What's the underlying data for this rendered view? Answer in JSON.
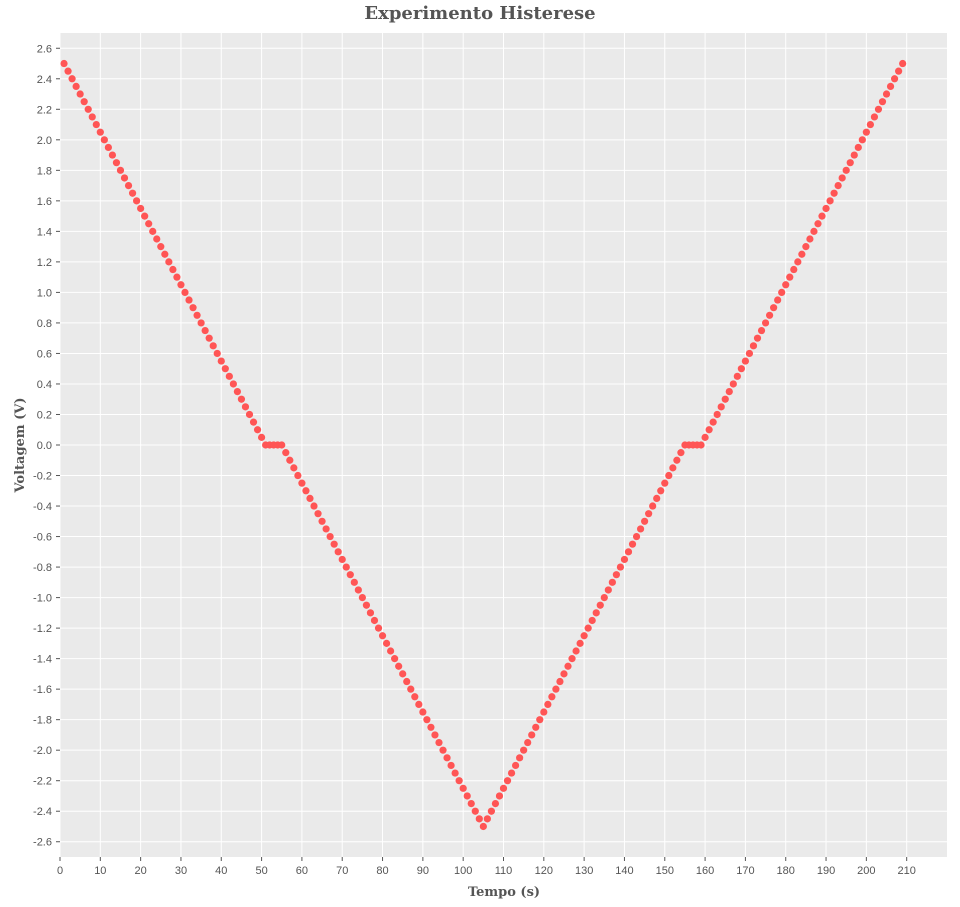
{
  "chart_data": {
    "type": "scatter",
    "title": "Experimento Histerese",
    "xlabel": "Tempo (s)",
    "ylabel": "Voltagem (V)",
    "xlim": [
      0,
      220
    ],
    "ylim": [
      -2.7,
      2.7
    ],
    "grid": true,
    "marker_color": "#ff5555",
    "background_color": "#eaeaea",
    "x_ticks": [
      0,
      10,
      20,
      30,
      40,
      50,
      60,
      70,
      80,
      90,
      100,
      110,
      120,
      130,
      140,
      150,
      160,
      170,
      180,
      190,
      200,
      210
    ],
    "x_tick_labels": [
      "0",
      "10",
      "20",
      "30",
      "40",
      "50",
      "60",
      "70",
      "80",
      "90",
      "100",
      "110",
      "120",
      "130",
      "140",
      "150",
      "160",
      "170",
      "180",
      "190",
      "200",
      "210"
    ],
    "y_ticks": [
      2.6,
      2.4,
      2.2,
      2.0,
      1.8,
      1.6,
      1.4,
      1.2,
      1.0,
      0.8,
      0.6,
      0.4,
      0.2,
      0.0,
      -0.2,
      -0.4,
      -0.6,
      -0.8,
      -1.0,
      -1.2,
      -1.4,
      -1.6,
      -1.8,
      -2.0,
      -2.2,
      -2.4,
      -2.6
    ],
    "y_tick_labels": [
      "2.6",
      "2.4",
      "2.2",
      "2.0",
      "1.8",
      "1.6",
      "1.4",
      "1.2",
      "1.0",
      "0.8",
      "0.6",
      "0.4",
      "0.2",
      "0.0",
      "-0.2",
      "-0.4",
      "-0.6",
      "-0.8",
      "-1.0",
      "-1.2",
      "-1.4",
      "-1.6",
      "-1.8",
      "-2.0",
      "-2.2",
      "-2.4",
      "-2.6"
    ],
    "x": [
      1,
      2,
      3,
      4,
      5,
      6,
      7,
      8,
      9,
      10,
      11,
      12,
      13,
      14,
      15,
      16,
      17,
      18,
      19,
      20,
      21,
      22,
      23,
      24,
      25,
      26,
      27,
      28,
      29,
      30,
      31,
      32,
      33,
      34,
      35,
      36,
      37,
      38,
      39,
      40,
      41,
      42,
      43,
      44,
      45,
      46,
      47,
      48,
      49,
      50,
      51,
      52,
      53,
      54,
      55,
      56,
      57,
      58,
      59,
      60,
      61,
      62,
      63,
      64,
      65,
      66,
      67,
      68,
      69,
      70,
      71,
      72,
      73,
      74,
      75,
      76,
      77,
      78,
      79,
      80,
      81,
      82,
      83,
      84,
      85,
      86,
      87,
      88,
      89,
      90,
      91,
      92,
      93,
      94,
      95,
      96,
      97,
      98,
      99,
      100,
      101,
      102,
      103,
      104,
      105,
      106,
      107,
      108,
      109,
      110,
      111,
      112,
      113,
      114,
      115,
      116,
      117,
      118,
      119,
      120,
      121,
      122,
      123,
      124,
      125,
      126,
      127,
      128,
      129,
      130,
      131,
      132,
      133,
      134,
      135,
      136,
      137,
      138,
      139,
      140,
      141,
      142,
      143,
      144,
      145,
      146,
      147,
      148,
      149,
      150,
      151,
      152,
      153,
      154,
      155,
      156,
      157,
      158,
      159,
      160,
      161,
      162,
      163,
      164,
      165,
      166,
      167,
      168,
      169,
      170,
      171,
      172,
      173,
      174,
      175,
      176,
      177,
      178,
      179,
      180,
      181,
      182,
      183,
      184,
      185,
      186,
      187,
      188,
      189,
      190,
      191,
      192,
      193,
      194,
      195,
      196,
      197,
      198,
      199,
      200,
      201,
      202,
      203,
      204,
      205,
      206,
      207,
      208,
      209
    ],
    "y": [
      2.5,
      2.45,
      2.4,
      2.35,
      2.3,
      2.25,
      2.2,
      2.15,
      2.1,
      2.05,
      2.0,
      1.95,
      1.9,
      1.85,
      1.8,
      1.75,
      1.7,
      1.65,
      1.6,
      1.55,
      1.5,
      1.45,
      1.4,
      1.35,
      1.3,
      1.25,
      1.2,
      1.15,
      1.1,
      1.05,
      1.0,
      0.95,
      0.9,
      0.85,
      0.8,
      0.75,
      0.7,
      0.65,
      0.6,
      0.55,
      0.5,
      0.45,
      0.4,
      0.35,
      0.3,
      0.25,
      0.2,
      0.15,
      0.1,
      0.05,
      0.0,
      0.0,
      0.0,
      0.0,
      0.0,
      -0.05,
      -0.1,
      -0.15,
      -0.2,
      -0.25,
      -0.3,
      -0.35,
      -0.4,
      -0.45,
      -0.5,
      -0.55,
      -0.6,
      -0.65,
      -0.7,
      -0.75,
      -0.8,
      -0.85,
      -0.9,
      -0.95,
      -1.0,
      -1.05,
      -1.1,
      -1.15,
      -1.2,
      -1.25,
      -1.3,
      -1.35,
      -1.4,
      -1.45,
      -1.5,
      -1.55,
      -1.6,
      -1.65,
      -1.7,
      -1.75,
      -1.8,
      -1.85,
      -1.9,
      -1.95,
      -2.0,
      -2.05,
      -2.1,
      -2.15,
      -2.2,
      -2.25,
      -2.3,
      -2.35,
      -2.4,
      -2.45,
      -2.5,
      -2.45,
      -2.4,
      -2.35,
      -2.3,
      -2.25,
      -2.2,
      -2.15,
      -2.1,
      -2.05,
      -2.0,
      -1.95,
      -1.9,
      -1.85,
      -1.8,
      -1.75,
      -1.7,
      -1.65,
      -1.6,
      -1.55,
      -1.5,
      -1.45,
      -1.4,
      -1.35,
      -1.3,
      -1.25,
      -1.2,
      -1.15,
      -1.1,
      -1.05,
      -1.0,
      -0.95,
      -0.9,
      -0.85,
      -0.8,
      -0.75,
      -0.7,
      -0.65,
      -0.6,
      -0.55,
      -0.5,
      -0.45,
      -0.4,
      -0.35,
      -0.3,
      -0.25,
      -0.2,
      -0.15,
      -0.1,
      -0.05,
      0.0,
      0.0,
      0.0,
      0.0,
      0.0,
      0.05,
      0.1,
      0.15,
      0.2,
      0.25,
      0.3,
      0.35,
      0.4,
      0.45,
      0.5,
      0.55,
      0.6,
      0.65,
      0.7,
      0.75,
      0.8,
      0.85,
      0.9,
      0.95,
      1.0,
      1.05,
      1.1,
      1.15,
      1.2,
      1.25,
      1.3,
      1.35,
      1.4,
      1.45,
      1.5,
      1.55,
      1.6,
      1.65,
      1.7,
      1.75,
      1.8,
      1.85,
      1.9,
      1.95,
      2.0,
      2.05,
      2.1,
      2.15,
      2.2,
      2.25,
      2.3,
      2.35,
      2.4,
      2.45,
      2.5
    ]
  }
}
